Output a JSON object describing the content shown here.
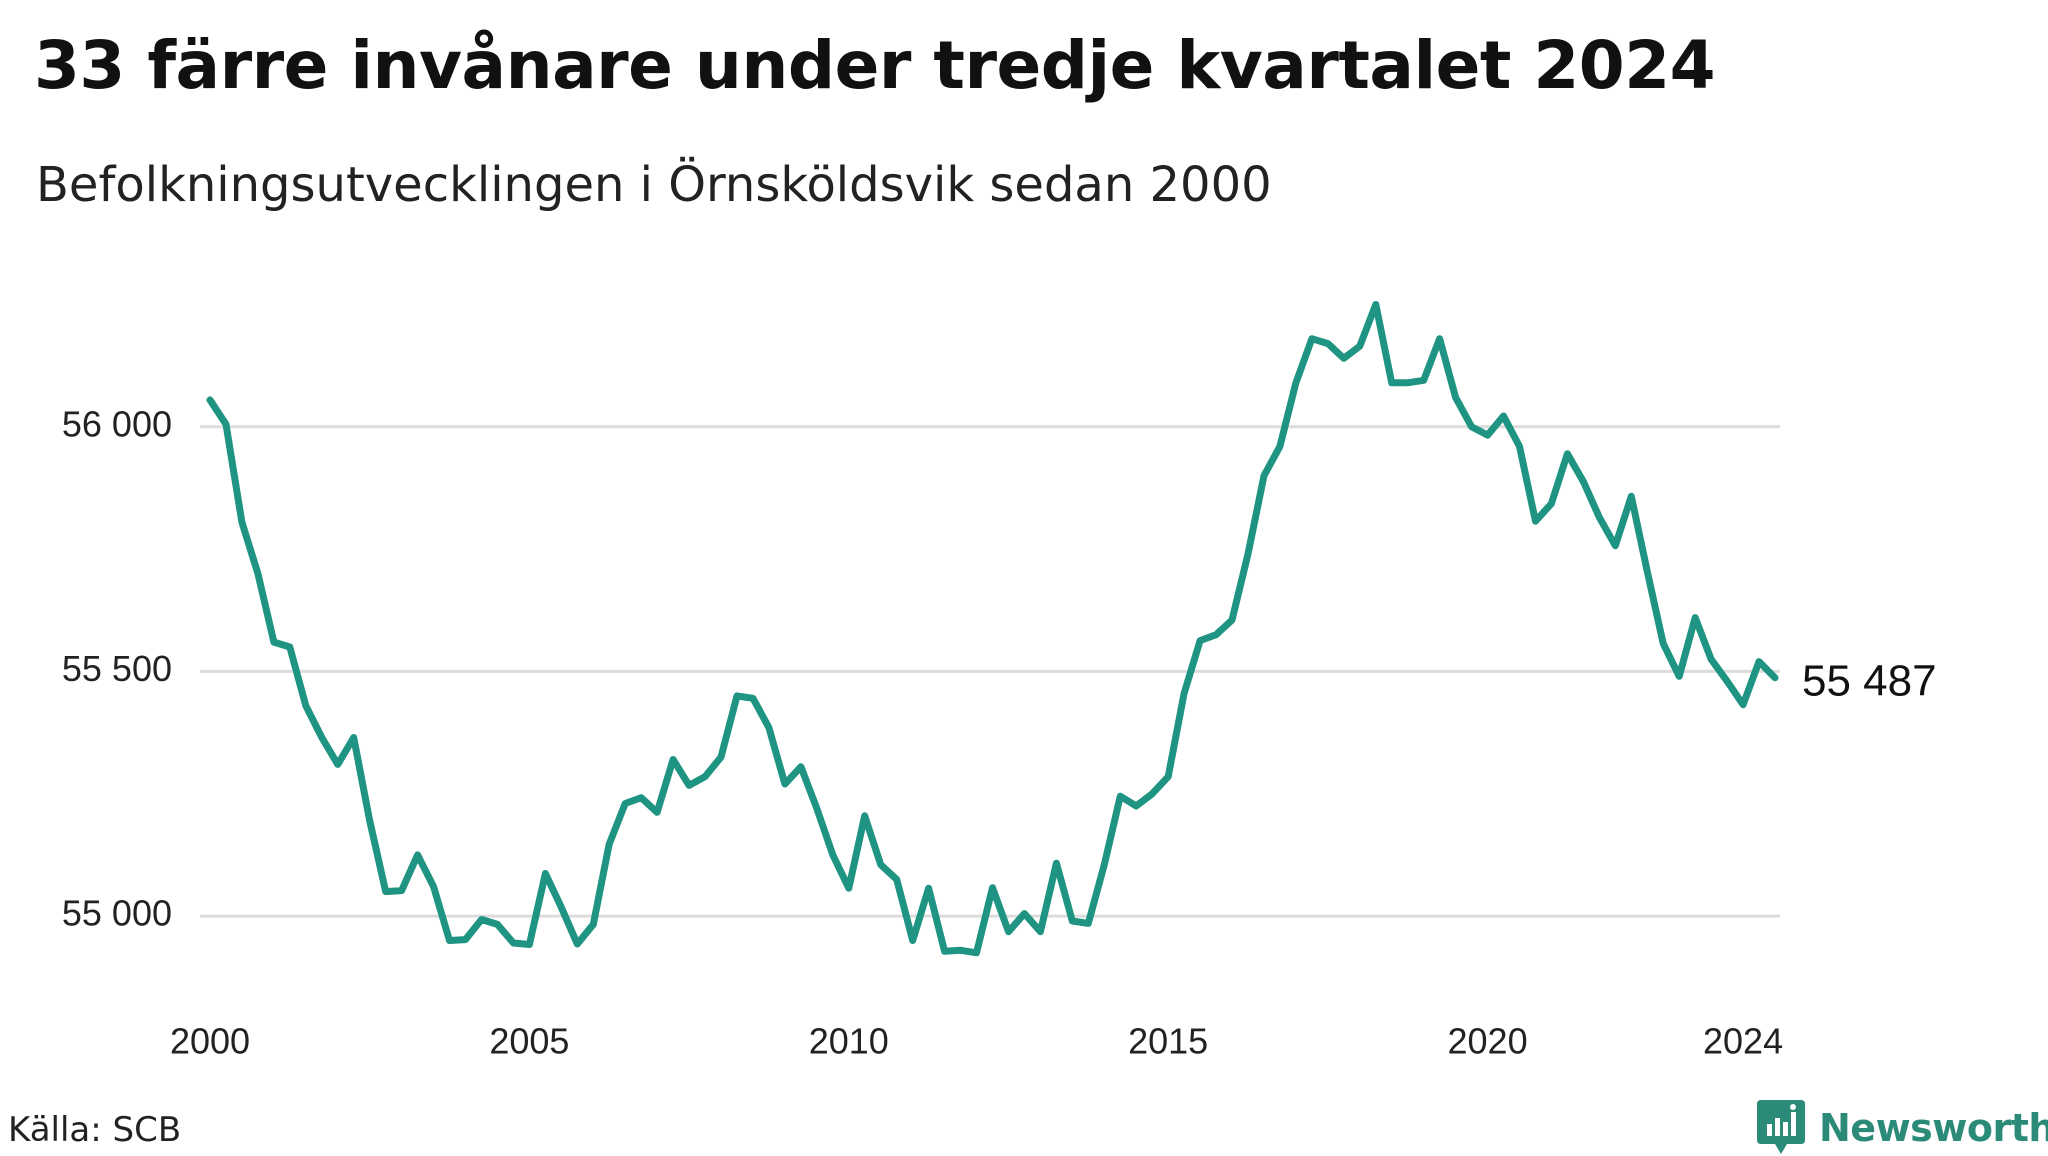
{
  "header": {
    "title": "33 färre invånare under tredje kvartalet 2024",
    "subtitle": "Befolkningsutvecklingen i Örnsköldsvik sedan 2000"
  },
  "footer": {
    "source": "Källa: SCB",
    "brand": "Newsworthy"
  },
  "icons": {
    "brand_logo": "bar-chart-badge-icon"
  },
  "colors": {
    "line": "#1f9483",
    "grid": "#dcdcdc",
    "brand": "#2b8a78"
  },
  "chart_data": {
    "type": "line",
    "title": "33 färre invånare under tredje kvartalet 2024",
    "subtitle": "Befolkningsutvecklingen i Örnsköldsvik sedan 2000",
    "xlabel": "",
    "ylabel": "",
    "x_ticks": [
      "2000",
      "2005",
      "2010",
      "2015",
      "2020",
      "2024"
    ],
    "x_tick_values": [
      2000,
      2005,
      2010,
      2015,
      2020,
      2024
    ],
    "y_ticks": [
      "55 000",
      "55 500",
      "56 000"
    ],
    "y_tick_values": [
      55000,
      55500,
      56000
    ],
    "xlim": [
      2000,
      2024.5
    ],
    "ylim": [
      54900,
      56300
    ],
    "grid": "horizontal",
    "legend": "none",
    "end_label": "55 487",
    "series": [
      {
        "x": [
          2000.0,
          2000.25,
          2000.5,
          2000.75,
          2001.0,
          2001.25,
          2001.5,
          2001.75,
          2002.0,
          2002.25,
          2002.5,
          2002.75,
          2003.0,
          2003.25,
          2003.5,
          2003.75,
          2004.0,
          2004.25,
          2004.5,
          2004.75,
          2005.0,
          2005.25,
          2005.5,
          2005.75,
          2006.0,
          2006.25,
          2006.5,
          2006.75,
          2007.0,
          2007.25,
          2007.5,
          2007.75,
          2008.0,
          2008.25,
          2008.5,
          2008.75,
          2009.0,
          2009.25,
          2009.5,
          2009.75,
          2010.0,
          2010.25,
          2010.5,
          2010.75,
          2011.0,
          2011.25,
          2011.5,
          2011.75,
          2012.0,
          2012.25,
          2012.5,
          2012.75,
          2013.0,
          2013.25,
          2013.5,
          2013.75,
          2014.0,
          2014.25,
          2014.5,
          2014.75,
          2015.0,
          2015.25,
          2015.5,
          2015.75,
          2016.0,
          2016.25,
          2016.5,
          2016.75,
          2017.0,
          2017.25,
          2017.5,
          2017.75,
          2018.0,
          2018.25,
          2018.5,
          2018.75,
          2019.0,
          2019.25,
          2019.5,
          2019.75,
          2020.0,
          2020.25,
          2020.5,
          2020.75,
          2021.0,
          2021.25,
          2021.5,
          2021.75,
          2022.0,
          2022.25,
          2022.5,
          2022.75,
          2023.0,
          2023.25,
          2023.5,
          2023.75,
          2024.0,
          2024.25,
          2024.5
        ],
        "values": [
          56055,
          56005,
          55805,
          55700,
          55560,
          55550,
          55430,
          55365,
          55310,
          55365,
          55195,
          55050,
          55052,
          55125,
          55060,
          54950,
          54952,
          54993,
          54983,
          54945,
          54942,
          55087,
          55018,
          54943,
          54983,
          55147,
          55230,
          55242,
          55212,
          55320,
          55267,
          55285,
          55325,
          55450,
          55445,
          55385,
          55270,
          55305,
          55220,
          55125,
          55057,
          55205,
          55105,
          55075,
          54950,
          55057,
          54928,
          54930,
          54925,
          55058,
          54968,
          55005,
          54968,
          55108,
          54990,
          54985,
          55105,
          55245,
          55225,
          55250,
          55285,
          55455,
          55563,
          55575,
          55605,
          55740,
          55900,
          55960,
          56090,
          56180,
          56170,
          56140,
          56165,
          56250,
          56090,
          56090,
          56095,
          56180,
          56060,
          56000,
          55983,
          56022,
          55960,
          55807,
          55843,
          55945,
          55888,
          55815,
          55757,
          55858,
          55705,
          55557,
          55490,
          55610,
          55525,
          55480,
          55432,
          55520,
          55487
        ]
      }
    ]
  }
}
